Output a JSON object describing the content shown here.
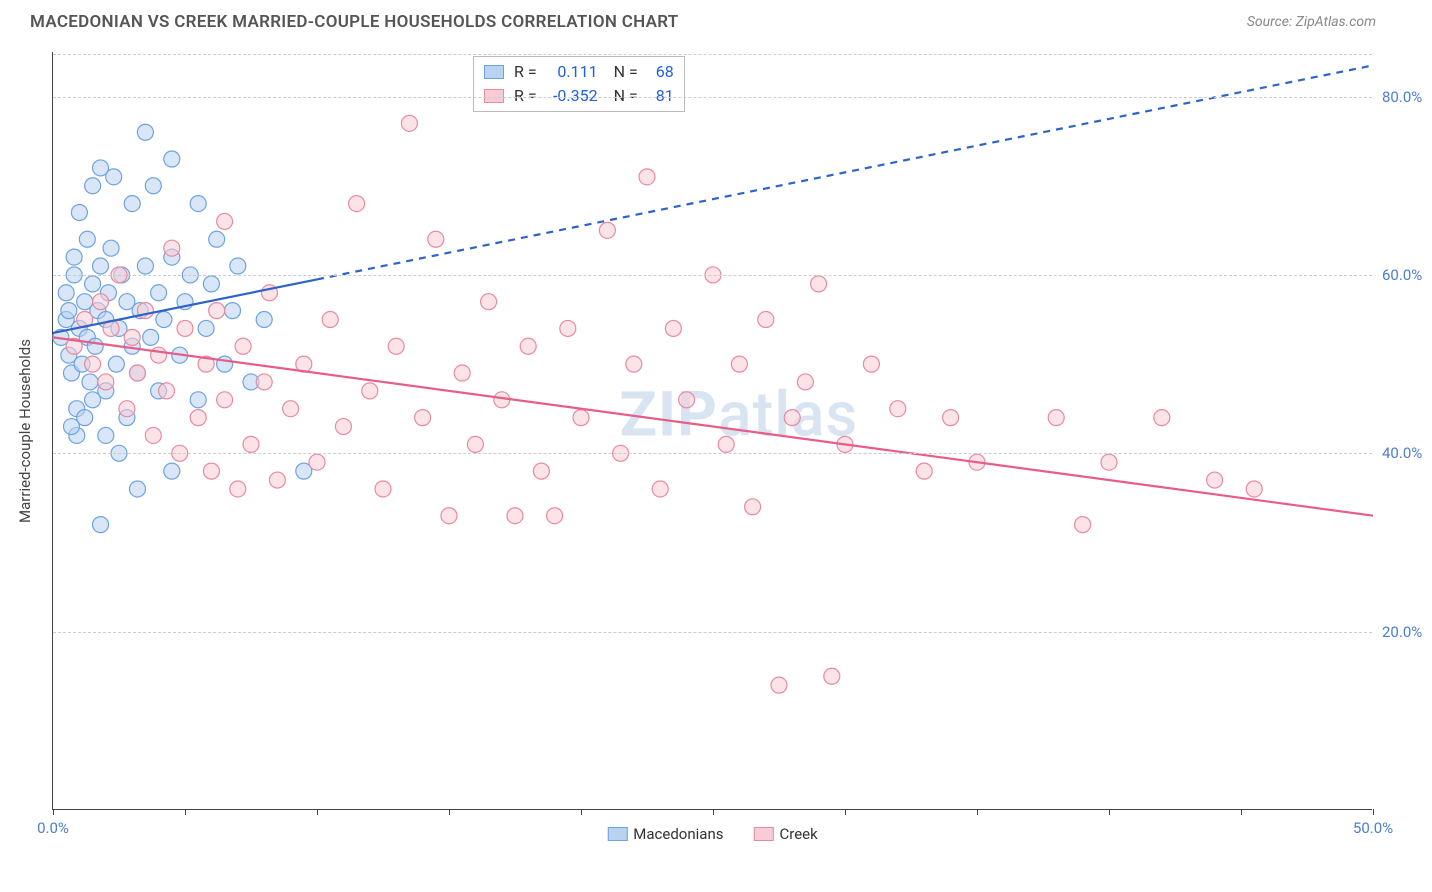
{
  "title": "MACEDONIAN VS CREEK MARRIED-COUPLE HOUSEHOLDS CORRELATION CHART",
  "source": "Source: ZipAtlas.com",
  "ylabel": "Married-couple Households",
  "watermark_bold": "ZIP",
  "watermark_rest": "atlas",
  "xlim": [
    0,
    50
  ],
  "ylim": [
    0,
    85
  ],
  "xtick_positions": [
    0,
    5,
    10,
    15,
    20,
    25,
    30,
    35,
    40,
    45,
    50
  ],
  "xtick_labels_shown": {
    "0": "0.0%",
    "50": "50.0%"
  },
  "ytick_positions": [
    20,
    40,
    60,
    80
  ],
  "ytick_labels": [
    "20.0%",
    "40.0%",
    "60.0%",
    "80.0%"
  ],
  "grid_color": "#cccccc",
  "background_color": "#ffffff",
  "axis_color": "#444444",
  "tick_label_color": "#4a7fd0",
  "marker_radius": 8,
  "marker_stroke_width": 1.2,
  "series": [
    {
      "name": "Macedonians",
      "fill": "#b8d2f0",
      "stroke": "#6fa3df",
      "fill_opacity": 0.55,
      "R": "0.111",
      "N": "68",
      "trend": {
        "x1": 0,
        "y1": 53.5,
        "x2": 50,
        "y2": 83.5,
        "solid_until_x": 10,
        "color": "#2e64c8",
        "width": 2.2
      },
      "points": [
        [
          0.3,
          53
        ],
        [
          0.5,
          55
        ],
        [
          0.5,
          58
        ],
        [
          0.6,
          51
        ],
        [
          0.6,
          56
        ],
        [
          0.7,
          49
        ],
        [
          0.8,
          60
        ],
        [
          0.8,
          62
        ],
        [
          0.9,
          45
        ],
        [
          1.0,
          54
        ],
        [
          1.0,
          67
        ],
        [
          1.1,
          50
        ],
        [
          1.2,
          57
        ],
        [
          1.3,
          53
        ],
        [
          1.3,
          64
        ],
        [
          1.4,
          48
        ],
        [
          1.5,
          59
        ],
        [
          1.5,
          70
        ],
        [
          1.6,
          52
        ],
        [
          1.7,
          56
        ],
        [
          1.8,
          61
        ],
        [
          1.8,
          72
        ],
        [
          2.0,
          47
        ],
        [
          2.0,
          55
        ],
        [
          2.1,
          58
        ],
        [
          2.2,
          63
        ],
        [
          2.3,
          71
        ],
        [
          2.4,
          50
        ],
        [
          2.5,
          54
        ],
        [
          2.6,
          60
        ],
        [
          2.8,
          44
        ],
        [
          2.8,
          57
        ],
        [
          3.0,
          52
        ],
        [
          3.0,
          68
        ],
        [
          3.2,
          49
        ],
        [
          3.3,
          56
        ],
        [
          3.5,
          76
        ],
        [
          3.5,
          61
        ],
        [
          3.7,
          53
        ],
        [
          3.8,
          70
        ],
        [
          4.0,
          47
        ],
        [
          4.0,
          58
        ],
        [
          4.2,
          55
        ],
        [
          4.5,
          62
        ],
        [
          4.5,
          73
        ],
        [
          4.8,
          51
        ],
        [
          5.0,
          57
        ],
        [
          5.2,
          60
        ],
        [
          5.5,
          46
        ],
        [
          5.5,
          68
        ],
        [
          5.8,
          54
        ],
        [
          6.0,
          59
        ],
        [
          6.2,
          64
        ],
        [
          6.5,
          50
        ],
        [
          6.8,
          56
        ],
        [
          7.0,
          61
        ],
        [
          7.5,
          48
        ],
        [
          8.0,
          55
        ],
        [
          1.8,
          32
        ],
        [
          3.2,
          36
        ],
        [
          0.9,
          42
        ],
        [
          2.5,
          40
        ],
        [
          4.5,
          38
        ],
        [
          9.5,
          38
        ],
        [
          1.2,
          44
        ],
        [
          1.5,
          46
        ],
        [
          0.7,
          43
        ],
        [
          2.0,
          42
        ]
      ]
    },
    {
      "name": "Creek",
      "fill": "#f7ccd6",
      "stroke": "#e88aa3",
      "fill_opacity": 0.55,
      "R": "-0.352",
      "N": "81",
      "trend": {
        "x1": 0,
        "y1": 53,
        "x2": 50,
        "y2": 33,
        "solid_until_x": 50,
        "color": "#e85d87",
        "width": 2.2
      },
      "points": [
        [
          0.8,
          52
        ],
        [
          1.2,
          55
        ],
        [
          1.5,
          50
        ],
        [
          1.8,
          57
        ],
        [
          2.0,
          48
        ],
        [
          2.2,
          54
        ],
        [
          2.5,
          60
        ],
        [
          2.8,
          45
        ],
        [
          3.0,
          53
        ],
        [
          3.2,
          49
        ],
        [
          3.5,
          56
        ],
        [
          3.8,
          42
        ],
        [
          4.0,
          51
        ],
        [
          4.3,
          47
        ],
        [
          4.5,
          63
        ],
        [
          4.8,
          40
        ],
        [
          5.0,
          54
        ],
        [
          5.5,
          44
        ],
        [
          5.8,
          50
        ],
        [
          6.0,
          38
        ],
        [
          6.2,
          56
        ],
        [
          6.5,
          46
        ],
        [
          7.0,
          36
        ],
        [
          7.2,
          52
        ],
        [
          7.5,
          41
        ],
        [
          8.0,
          48
        ],
        [
          8.2,
          58
        ],
        [
          8.5,
          37
        ],
        [
          9.0,
          45
        ],
        [
          9.5,
          50
        ],
        [
          10.0,
          39
        ],
        [
          10.5,
          55
        ],
        [
          11.0,
          43
        ],
        [
          11.5,
          68
        ],
        [
          12.0,
          47
        ],
        [
          12.5,
          36
        ],
        [
          13.0,
          52
        ],
        [
          13.5,
          77
        ],
        [
          14.0,
          44
        ],
        [
          14.5,
          64
        ],
        [
          15.0,
          33
        ],
        [
          15.5,
          49
        ],
        [
          16.0,
          41
        ],
        [
          16.5,
          57
        ],
        [
          17.0,
          46
        ],
        [
          17.5,
          33
        ],
        [
          18.0,
          52
        ],
        [
          18.5,
          38
        ],
        [
          19.0,
          33
        ],
        [
          19.5,
          54
        ],
        [
          20.0,
          44
        ],
        [
          21.0,
          65
        ],
        [
          21.5,
          40
        ],
        [
          22.0,
          50
        ],
        [
          22.5,
          71
        ],
        [
          23.0,
          36
        ],
        [
          23.5,
          54
        ],
        [
          24.0,
          46
        ],
        [
          25.0,
          60
        ],
        [
          25.5,
          41
        ],
        [
          26.0,
          50
        ],
        [
          26.5,
          34
        ],
        [
          27.0,
          55
        ],
        [
          28.0,
          44
        ],
        [
          28.5,
          48
        ],
        [
          29.0,
          59
        ],
        [
          30.0,
          41
        ],
        [
          31.0,
          50
        ],
        [
          32.0,
          45
        ],
        [
          33.0,
          38
        ],
        [
          34.0,
          44
        ],
        [
          35.0,
          39
        ],
        [
          38.0,
          44
        ],
        [
          39.0,
          32
        ],
        [
          40.0,
          39
        ],
        [
          42.0,
          44
        ],
        [
          44.0,
          37
        ],
        [
          45.5,
          36
        ],
        [
          27.5,
          14
        ],
        [
          29.5,
          15
        ],
        [
          6.5,
          66
        ]
      ]
    }
  ],
  "bottom_legend": [
    {
      "label": "Macedonians",
      "fill": "#b8d2f0",
      "stroke": "#6fa3df"
    },
    {
      "label": "Creek",
      "fill": "#f7ccd6",
      "stroke": "#e88aa3"
    }
  ]
}
